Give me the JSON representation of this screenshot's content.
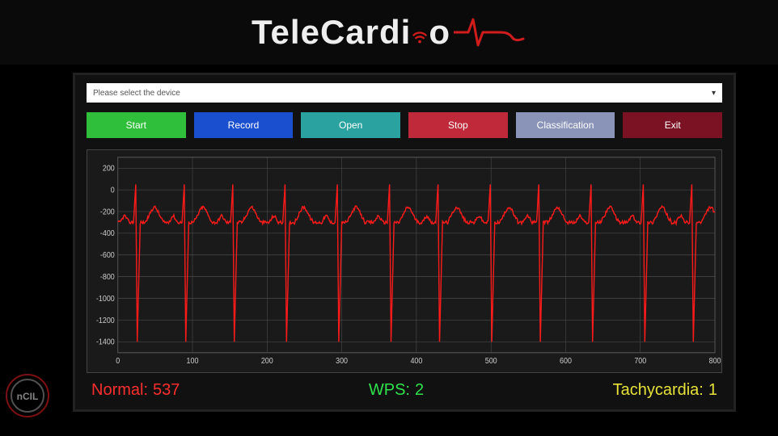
{
  "logo": {
    "text_part1": "TeleCardi",
    "text_part2": "o",
    "accent_color": "#d01c1c",
    "text_color": "#eeeeee"
  },
  "device_select": {
    "placeholder": "Please select the device"
  },
  "buttons": [
    {
      "label": "Start",
      "color": "#2fbf3a"
    },
    {
      "label": "Record",
      "color": "#1a4fd0"
    },
    {
      "label": "Open",
      "color": "#2aa3a0"
    },
    {
      "label": "Stop",
      "color": "#c0293a"
    },
    {
      "label": "Classification",
      "color": "#8a93b8"
    },
    {
      "label": "Exit",
      "color": "#7a1224"
    }
  ],
  "chart": {
    "type": "line",
    "line_color": "#ff1a1a",
    "line_width": 1.4,
    "background_color": "#1a1a1a",
    "grid_color": "#555555",
    "axis_text_color": "#cccccc",
    "axis_fontsize": 9,
    "xlim": [
      0,
      800
    ],
    "ylim": [
      -1500,
      300
    ],
    "xticks": [
      0,
      100,
      200,
      300,
      400,
      500,
      600,
      700,
      800
    ],
    "yticks": [
      200,
      0,
      -200,
      -400,
      -600,
      -800,
      -1000,
      -1200,
      -1400
    ],
    "ecg": {
      "beats_x": [
        25,
        90,
        155,
        225,
        295,
        365,
        430,
        500,
        565,
        635,
        705,
        770
      ],
      "baseline": -300,
      "p_amp": 60,
      "r_amp_up": 350,
      "r_amp_down": -1100,
      "t_amp": 140,
      "noise": 30
    }
  },
  "status": {
    "normal": {
      "label": "Normal:",
      "value": "537",
      "color": "#ff2e2e"
    },
    "wps": {
      "label": "WPS:",
      "value": "2",
      "color": "#2fe24b"
    },
    "tachy": {
      "label": "Tachycardia:",
      "value": "1",
      "color": "#e6e23a"
    }
  }
}
